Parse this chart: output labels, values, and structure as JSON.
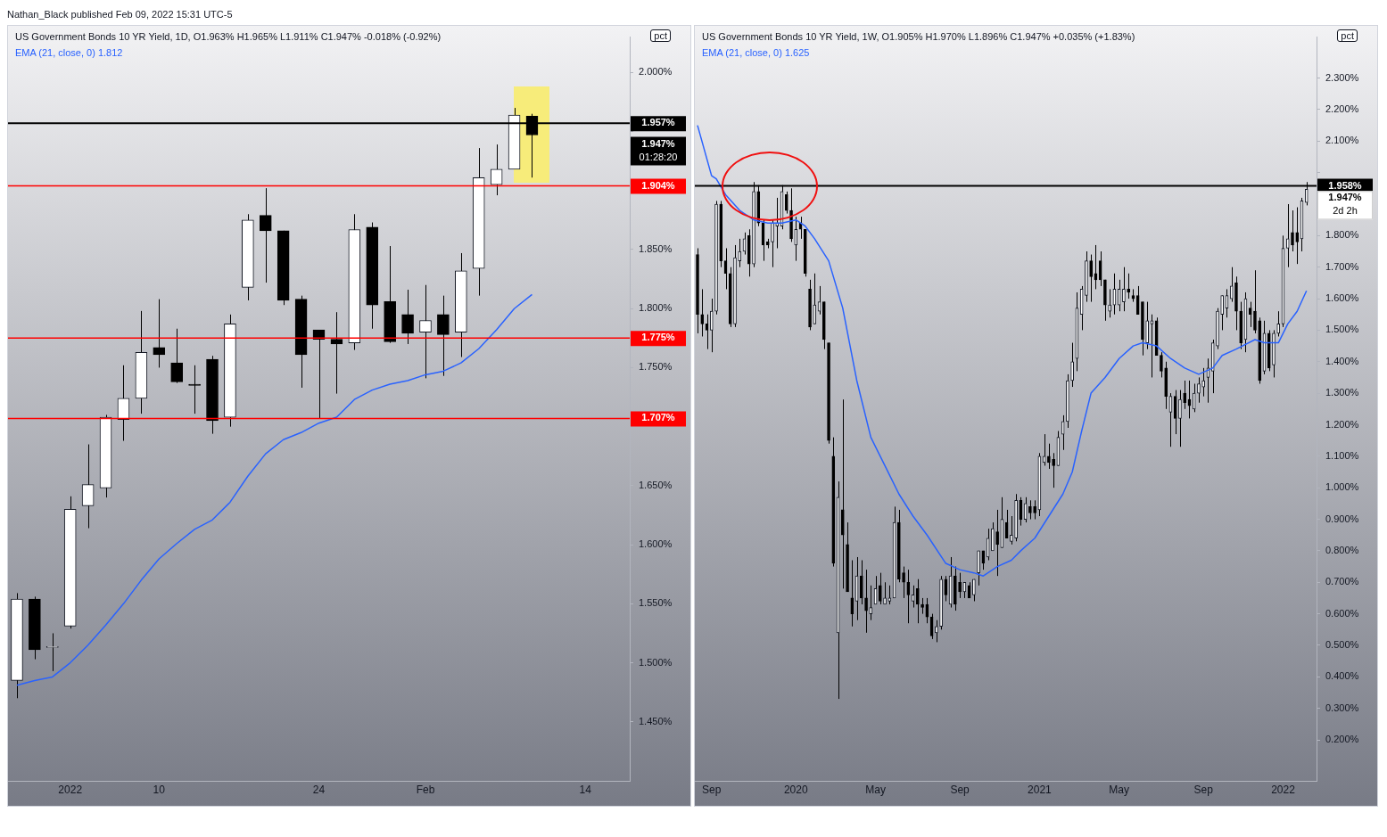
{
  "chart_data": [
    {
      "type": "candlestick",
      "title": "US Government Bonds 10 YR Yield, 1D, O1.963% H1.965% L1.911% C1.947% -0.018% (-0.92%)",
      "subtitle": "Nathan_Black published Feb 09, 2022 15:31 UTC-5",
      "ylabel": "pct",
      "color": "#000000",
      "colors": [
        "#131722",
        "#000000",
        "#131722",
        "#131722",
        "#131722",
        "#131722",
        "#131722",
        "#131722",
        "#000000",
        "#000000",
        "#000000",
        "#000000",
        "#131722",
        "#131722",
        "#000000",
        "#000000",
        "#000000",
        "#000000",
        "#000000",
        "#131722",
        "#000000",
        "#000000",
        "#000000",
        "#131722",
        "#000000",
        "#131722",
        "#131722",
        "#131722",
        "#131722",
        "#000000",
        null,
        null,
        null,
        null,
        null
      ],
      "categories": [
        null,
        null,
        null,
        "2022",
        null,
        null,
        null,
        null,
        "10",
        null,
        null,
        null,
        null,
        null,
        null,
        null,
        null,
        "24",
        null,
        null,
        null,
        null,
        null,
        "Feb",
        null,
        null,
        null,
        null,
        null,
        null,
        null,
        null,
        "14",
        null,
        null
      ],
      "ohlc": [
        [
          1.485,
          1.559,
          1.47,
          1.554
        ],
        [
          1.554,
          1.556,
          1.503,
          1.511
        ],
        [
          1.513,
          1.525,
          1.493,
          1.513
        ],
        [
          1.531,
          1.641,
          1.529,
          1.63
        ],
        [
          1.633,
          1.685,
          1.614,
          1.651
        ],
        [
          1.648,
          1.71,
          1.64,
          1.708
        ],
        [
          1.706,
          1.752,
          1.688,
          1.724
        ],
        [
          1.724,
          1.798,
          1.711,
          1.763
        ],
        [
          1.767,
          1.808,
          1.75,
          1.761
        ],
        [
          1.754,
          1.783,
          1.737,
          1.738
        ],
        [
          1.736,
          1.752,
          1.711,
          1.735
        ],
        [
          1.757,
          1.76,
          1.694,
          1.705
        ],
        [
          1.708,
          1.795,
          1.7,
          1.787
        ],
        [
          1.818,
          1.88,
          1.807,
          1.875
        ],
        [
          1.879,
          1.902,
          1.822,
          1.866
        ],
        [
          1.866,
          1.866,
          1.803,
          1.807
        ],
        [
          1.808,
          1.811,
          1.733,
          1.761
        ],
        [
          1.782,
          1.782,
          1.707,
          1.774
        ],
        [
          1.774,
          1.797,
          1.728,
          1.77
        ],
        [
          1.771,
          1.88,
          1.765,
          1.867
        ],
        [
          1.869,
          1.873,
          1.783,
          1.803
        ],
        [
          1.806,
          1.853,
          1.771,
          1.772
        ],
        [
          1.795,
          1.816,
          1.77,
          1.779
        ],
        [
          1.78,
          1.82,
          1.741,
          1.79
        ],
        [
          1.795,
          1.811,
          1.743,
          1.778
        ],
        [
          1.78,
          1.847,
          1.759,
          1.832
        ],
        [
          1.834,
          1.936,
          1.811,
          1.911
        ],
        [
          1.905,
          1.939,
          1.896,
          1.918
        ],
        [
          1.918,
          1.97,
          1.918,
          1.964
        ],
        [
          1.963,
          1.965,
          1.911,
          1.947
        ],
        null,
        null,
        null,
        null,
        null
      ],
      "series": [
        {
          "name": "EMA (21, close, 0) 1.812",
          "type": "line",
          "color": "#2962ff",
          "values": [
            1.481,
            1.485,
            1.488,
            1.5,
            1.515,
            1.532,
            1.55,
            1.57,
            1.588,
            1.601,
            1.613,
            1.621,
            1.636,
            1.658,
            1.677,
            1.689,
            1.695,
            1.703,
            1.708,
            1.723,
            1.731,
            1.736,
            1.739,
            1.744,
            1.747,
            1.754,
            1.766,
            1.782,
            1.8,
            1.812,
            null,
            null,
            null,
            null,
            null
          ]
        }
      ],
      "ylim": [
        1.4,
        2.03
      ],
      "yticks": [
        {
          "value": 1.45,
          "label": "1.450%"
        },
        {
          "value": 1.5,
          "label": "1.500%"
        },
        {
          "value": 1.55,
          "label": "1.550%"
        },
        {
          "value": 1.6,
          "label": "1.600%"
        },
        {
          "value": 1.65,
          "label": "1.650%"
        },
        {
          "value": 1.7,
          "label": null
        },
        {
          "value": 1.75,
          "label": "1.750%"
        },
        {
          "value": 1.8,
          "label": "1.800%"
        },
        {
          "value": 1.85,
          "label": "1.850%"
        },
        {
          "value": 1.9,
          "label": null
        },
        {
          "value": 1.95,
          "label": null
        },
        {
          "value": 2.0,
          "label": "2.000%"
        }
      ],
      "ref_lines": [
        {
          "axis": "y",
          "value": 1.957,
          "label": "1.957%",
          "color": "#000000"
        },
        {
          "axis": "y",
          "value": 1.904,
          "label": "1.904%",
          "color": "#ff0000"
        },
        {
          "axis": "y",
          "value": 1.775,
          "label": "1.775%",
          "color": "#ff0000"
        },
        {
          "axis": "y",
          "value": 1.707,
          "label": "1.707%",
          "color": "#ff0000"
        }
      ],
      "annotations": [
        "1.947%",
        "01:28:20"
      ],
      "legend": "top left"
    },
    {
      "type": "candlestick",
      "title": "US Government Bonds 10 YR Yield, 1W, O1.905% H1.970% L1.896% C1.947% +0.035% (+1.83%)",
      "ylabel": "pct",
      "color": "#000000",
      "colors": [
        "#000000",
        "#000000",
        "#000000",
        "#131722",
        "#131722",
        "#000000",
        "#000000",
        "#000000",
        "#131722",
        "#131722",
        "#131722",
        "#000000",
        "#131722",
        "#000000",
        "#000000",
        "#000000",
        "#131722",
        "#131722",
        "#131722",
        "#000000",
        "#000000",
        "#131722",
        "#000000",
        "#000000",
        "#000000",
        "#131722",
        "#131722",
        "#000000",
        "#000000",
        "#000000",
        "#131722",
        "#000000",
        "#000000",
        "#000000",
        "#131722",
        "#000000",
        "#000000",
        "#131722",
        "#131722",
        "#000000",
        "#131722",
        "#131722",
        "#131722",
        "#000000",
        "#000000",
        "#000000",
        "#131722",
        "#000000",
        "#000000",
        "#000000",
        "#000000",
        "#131722",
        "#131722",
        "#000000",
        "#131722",
        "#000000",
        "#000000",
        "#131722",
        "#000000",
        "#131722",
        "#131722",
        "#000000",
        "#131722",
        "#131722",
        "#000000",
        "#131722",
        "#000000",
        "#131722",
        "#131722",
        "#000000",
        "#131722",
        "#000000",
        "#000000",
        "#131722",
        "#131722",
        "#000000",
        "#000000",
        "#131722",
        "#131722",
        "#131722",
        "#131722",
        "#131722",
        "#131722",
        "#131722",
        "#000000",
        "#000000",
        "#000000",
        "#000000",
        "#131722",
        "#131722",
        "#131722",
        "#131722",
        "#000000",
        "#000000",
        "#000000",
        "#000000",
        "#131722",
        "#131722",
        "#000000",
        "#000000",
        "#000000",
        "#131722",
        "#000000",
        "#131722",
        "#000000",
        "#000000",
        "#131722",
        "#131722",
        "#131722",
        "#131722",
        "#131722",
        "#131722",
        "#131722",
        "#131722",
        "#131722",
        "#000000",
        "#000000",
        "#131722",
        "#000000",
        "#000000",
        "#000000",
        "#131722",
        "#000000",
        "#131722",
        "#131722",
        "#131722",
        "#131722",
        "#000000",
        "#000000",
        "#131722",
        "#131722"
      ],
      "x": [
        "2019-08-12",
        "2019-08-19",
        "2019-08-26",
        "2019-09-02",
        "2019-09-09",
        "2019-09-16",
        "2019-09-23",
        "2019-09-30",
        "2019-10-07",
        "2019-10-14",
        "2019-10-21",
        "2019-10-28",
        "2019-11-04",
        "2019-11-11",
        "2019-11-18",
        "2019-11-25",
        "2019-12-02",
        "2019-12-09",
        "2019-12-16",
        "2019-12-23",
        "2019-12-30",
        "2020-01-06",
        "2020-01-13",
        "2020-01-20",
        "2020-01-27",
        "2020-02-03",
        "2020-02-10",
        "2020-02-17",
        "2020-02-24",
        "2020-03-02",
        "2020-03-09",
        "2020-03-16",
        "2020-03-23",
        "2020-03-30",
        "2020-04-06",
        "2020-04-13",
        "2020-04-20",
        "2020-04-27",
        "2020-05-04",
        "2020-05-11",
        "2020-05-18",
        "2020-05-25",
        "2020-06-01",
        "2020-06-08",
        "2020-06-15",
        "2020-06-22",
        "2020-06-29",
        "2020-07-06",
        "2020-07-13",
        "2020-07-20",
        "2020-07-27",
        "2020-08-03",
        "2020-08-10",
        "2020-08-17",
        "2020-08-24",
        "2020-08-31",
        "2020-09-07",
        "2020-09-14",
        "2020-09-21",
        "2020-09-28",
        "2020-10-05",
        "2020-10-12",
        "2020-10-19",
        "2020-10-26",
        "2020-11-02",
        "2020-11-09",
        "2020-11-16",
        "2020-11-23",
        "2020-11-30",
        "2020-12-07",
        "2020-12-14",
        "2020-12-21",
        "2020-12-28",
        "2021-01-04",
        "2021-01-11",
        "2021-01-18",
        "2021-01-25",
        "2021-02-01",
        "2021-02-08",
        "2021-02-15",
        "2021-02-22",
        "2021-03-01",
        "2021-03-08",
        "2021-03-15",
        "2021-03-22",
        "2021-03-29",
        "2021-04-05",
        "2021-04-12",
        "2021-04-19",
        "2021-04-26",
        "2021-05-03",
        "2021-05-10",
        "2021-05-17",
        "2021-05-24",
        "2021-05-31",
        "2021-06-07",
        "2021-06-14",
        "2021-06-21",
        "2021-06-28",
        "2021-07-05",
        "2021-07-12",
        "2021-07-19",
        "2021-07-26",
        "2021-08-02",
        "2021-08-09",
        "2021-08-16",
        "2021-08-23",
        "2021-08-30",
        "2021-09-06",
        "2021-09-13",
        "2021-09-20",
        "2021-09-27",
        "2021-10-04",
        "2021-10-11",
        "2021-10-18",
        "2021-10-25",
        "2021-11-01",
        "2021-11-08",
        "2021-11-15",
        "2021-11-22",
        "2021-11-29",
        "2021-12-06",
        "2021-12-13",
        "2021-12-20",
        "2021-12-27",
        "2022-01-03",
        "2022-01-10",
        "2022-01-17",
        "2022-01-24",
        "2022-01-31",
        "2022-02-07"
      ],
      "ohlc": [
        [
          1.74,
          1.76,
          1.49,
          1.55
        ],
        [
          1.55,
          1.63,
          1.48,
          1.52
        ],
        [
          1.52,
          1.55,
          1.44,
          1.5
        ],
        [
          1.5,
          1.6,
          1.43,
          1.56
        ],
        [
          1.56,
          1.91,
          1.55,
          1.9
        ],
        [
          1.9,
          1.91,
          1.7,
          1.72
        ],
        [
          1.72,
          1.76,
          1.63,
          1.68
        ],
        [
          1.68,
          1.7,
          1.51,
          1.52
        ],
        [
          1.52,
          1.77,
          1.51,
          1.73
        ],
        [
          1.72,
          1.79,
          1.7,
          1.75
        ],
        [
          1.75,
          1.81,
          1.74,
          1.79
        ],
        [
          1.8,
          1.82,
          1.67,
          1.71
        ],
        [
          1.71,
          1.97,
          1.7,
          1.94
        ],
        [
          1.94,
          1.96,
          1.83,
          1.84
        ],
        [
          1.84,
          1.85,
          1.72,
          1.77
        ],
        [
          1.78,
          1.79,
          1.76,
          1.77
        ],
        [
          1.78,
          1.85,
          1.7,
          1.84
        ],
        [
          1.83,
          1.92,
          1.76,
          1.84
        ],
        [
          1.83,
          1.96,
          1.82,
          1.94
        ],
        [
          1.93,
          1.94,
          1.87,
          1.88
        ],
        [
          1.88,
          1.95,
          1.78,
          1.79
        ],
        [
          1.77,
          1.86,
          1.72,
          1.82
        ],
        [
          1.84,
          1.86,
          1.79,
          1.82
        ],
        [
          1.82,
          1.82,
          1.67,
          1.68
        ],
        [
          1.63,
          1.66,
          1.5,
          1.51
        ],
        [
          1.52,
          1.68,
          1.52,
          1.58
        ],
        [
          1.56,
          1.64,
          1.55,
          1.59
        ],
        [
          1.59,
          1.59,
          1.44,
          1.47
        ],
        [
          1.46,
          1.46,
          1.14,
          1.15
        ],
        [
          1.1,
          1.16,
          0.75,
          0.76
        ],
        [
          0.54,
          1.02,
          0.33,
          0.97
        ],
        [
          0.93,
          1.28,
          0.68,
          0.85
        ],
        [
          0.82,
          0.89,
          0.67,
          0.67
        ],
        [
          0.65,
          0.77,
          0.56,
          0.6
        ],
        [
          0.64,
          0.78,
          0.58,
          0.72
        ],
        [
          0.72,
          0.77,
          0.63,
          0.65
        ],
        [
          0.65,
          0.74,
          0.54,
          0.61
        ],
        [
          0.6,
          0.69,
          0.58,
          0.62
        ],
        [
          0.63,
          0.72,
          0.63,
          0.68
        ],
        [
          0.69,
          0.73,
          0.63,
          0.64
        ],
        [
          0.63,
          0.7,
          0.63,
          0.65
        ],
        [
          0.64,
          0.69,
          0.63,
          0.65
        ],
        [
          0.65,
          0.94,
          0.65,
          0.89
        ],
        [
          0.89,
          0.93,
          0.7,
          0.71
        ],
        [
          0.73,
          0.75,
          0.65,
          0.7
        ],
        [
          0.7,
          0.74,
          0.57,
          0.66
        ],
        [
          0.64,
          0.69,
          0.62,
          0.66
        ],
        [
          0.68,
          0.71,
          0.57,
          0.63
        ],
        [
          0.63,
          0.65,
          0.6,
          0.62
        ],
        [
          0.63,
          0.65,
          0.57,
          0.59
        ],
        [
          0.59,
          0.6,
          0.52,
          0.53
        ],
        [
          0.54,
          0.58,
          0.51,
          0.56
        ],
        [
          0.56,
          0.72,
          0.55,
          0.71
        ],
        [
          0.71,
          0.72,
          0.64,
          0.66
        ],
        [
          0.63,
          0.78,
          0.62,
          0.72
        ],
        [
          0.72,
          0.75,
          0.61,
          0.63
        ],
        [
          0.7,
          0.73,
          0.65,
          0.67
        ],
        [
          0.67,
          0.7,
          0.65,
          0.7
        ],
        [
          0.69,
          0.7,
          0.65,
          0.65
        ],
        [
          0.66,
          0.71,
          0.64,
          0.71
        ],
        [
          0.73,
          0.8,
          0.69,
          0.8
        ],
        [
          0.8,
          0.8,
          0.74,
          0.76
        ],
        [
          0.78,
          0.87,
          0.77,
          0.84
        ],
        [
          0.8,
          0.89,
          0.8,
          0.87
        ],
        [
          0.86,
          0.93,
          0.72,
          0.82
        ],
        [
          0.81,
          0.97,
          0.81,
          0.9
        ],
        [
          0.89,
          0.93,
          0.84,
          0.84
        ],
        [
          0.83,
          0.91,
          0.82,
          0.85
        ],
        [
          0.84,
          0.98,
          0.83,
          0.96
        ],
        [
          0.96,
          0.97,
          0.88,
          0.9
        ],
        [
          0.9,
          0.97,
          0.89,
          0.95
        ],
        [
          0.94,
          0.96,
          0.9,
          0.92
        ],
        [
          0.94,
          0.96,
          0.9,
          0.92
        ],
        [
          0.93,
          1.11,
          0.91,
          1.1
        ],
        [
          1.08,
          1.17,
          1.07,
          1.1
        ],
        [
          1.1,
          1.14,
          1.06,
          1.08
        ],
        [
          1.09,
          1.11,
          1.0,
          1.07
        ],
        [
          1.07,
          1.18,
          1.07,
          1.16
        ],
        [
          1.17,
          1.23,
          1.12,
          1.21
        ],
        [
          1.21,
          1.36,
          1.19,
          1.34
        ],
        [
          1.34,
          1.46,
          1.32,
          1.4
        ],
        [
          1.41,
          1.62,
          1.37,
          1.57
        ],
        [
          1.55,
          1.64,
          1.5,
          1.63
        ],
        [
          1.61,
          1.75,
          1.59,
          1.72
        ],
        [
          1.72,
          1.74,
          1.59,
          1.67
        ],
        [
          1.68,
          1.77,
          1.63,
          1.66
        ],
        [
          1.72,
          1.75,
          1.64,
          1.66
        ],
        [
          1.66,
          1.66,
          1.53,
          1.58
        ],
        [
          1.56,
          1.63,
          1.54,
          1.58
        ],
        [
          1.58,
          1.68,
          1.55,
          1.63
        ],
        [
          1.58,
          1.66,
          1.56,
          1.63
        ],
        [
          1.59,
          1.7,
          1.56,
          1.63
        ],
        [
          1.63,
          1.68,
          1.6,
          1.62
        ],
        [
          1.61,
          1.63,
          1.59,
          1.6
        ],
        [
          1.61,
          1.64,
          1.55,
          1.55
        ],
        [
          1.59,
          1.59,
          1.42,
          1.47
        ],
        [
          1.46,
          1.59,
          1.44,
          1.53
        ],
        [
          1.52,
          1.55,
          1.35,
          1.53
        ],
        [
          1.53,
          1.54,
          1.42,
          1.42
        ],
        [
          1.42,
          1.43,
          1.35,
          1.37
        ],
        [
          1.38,
          1.4,
          1.25,
          1.29
        ],
        [
          1.24,
          1.3,
          1.13,
          1.29
        ],
        [
          1.29,
          1.31,
          1.17,
          1.22
        ],
        [
          1.22,
          1.31,
          1.13,
          1.28
        ],
        [
          1.3,
          1.34,
          1.25,
          1.27
        ],
        [
          1.28,
          1.34,
          1.22,
          1.26
        ],
        [
          1.25,
          1.33,
          1.24,
          1.3
        ],
        [
          1.3,
          1.35,
          1.27,
          1.33
        ],
        [
          1.32,
          1.38,
          1.29,
          1.34
        ],
        [
          1.35,
          1.41,
          1.27,
          1.38
        ],
        [
          1.37,
          1.47,
          1.3,
          1.46
        ],
        [
          1.45,
          1.57,
          1.44,
          1.56
        ],
        [
          1.55,
          1.61,
          1.5,
          1.61
        ],
        [
          1.57,
          1.63,
          1.54,
          1.61
        ],
        [
          1.6,
          1.7,
          1.59,
          1.64
        ],
        [
          1.65,
          1.67,
          1.5,
          1.56
        ],
        [
          1.56,
          1.59,
          1.44,
          1.46
        ],
        [
          1.47,
          1.62,
          1.43,
          1.6
        ],
        [
          1.57,
          1.59,
          1.51,
          1.55
        ],
        [
          1.56,
          1.69,
          1.49,
          1.5
        ],
        [
          1.53,
          1.54,
          1.33,
          1.34
        ],
        [
          1.37,
          1.53,
          1.36,
          1.49
        ],
        [
          1.49,
          1.5,
          1.37,
          1.38
        ],
        [
          1.39,
          1.5,
          1.35,
          1.49
        ],
        [
          1.49,
          1.56,
          1.48,
          1.52
        ],
        [
          1.52,
          1.8,
          1.51,
          1.76
        ],
        [
          1.76,
          1.9,
          1.7,
          1.79
        ],
        [
          1.81,
          1.88,
          1.75,
          1.77
        ],
        [
          1.81,
          1.89,
          1.71,
          1.78
        ],
        [
          1.79,
          1.92,
          1.75,
          1.91
        ],
        [
          1.905,
          1.97,
          1.896,
          1.947
        ]
      ],
      "series": [
        {
          "name": "EMA (21, close, 0) 1.625",
          "type": "line",
          "color": "#2962ff",
          "x": [
            "2019-08-12",
            "2019-09-02",
            "2019-09-09",
            "2019-09-23",
            "2019-10-14",
            "2019-11-04",
            "2019-11-25",
            "2019-12-16",
            "2020-01-06",
            "2020-01-20",
            "2020-02-03",
            "2020-02-24",
            "2020-03-16",
            "2020-04-06",
            "2020-04-27",
            "2020-05-18",
            "2020-06-08",
            "2020-06-29",
            "2020-07-20",
            "2020-08-17",
            "2020-09-07",
            "2020-09-28",
            "2020-10-12",
            "2020-11-02",
            "2020-11-23",
            "2020-12-07",
            "2020-12-28",
            "2021-01-18",
            "2021-02-08",
            "2021-02-22",
            "2021-03-08",
            "2021-03-22",
            "2021-04-12",
            "2021-05-03",
            "2021-05-24",
            "2021-06-07",
            "2021-06-28",
            "2021-07-19",
            "2021-08-09",
            "2021-08-30",
            "2021-09-20",
            "2021-10-04",
            "2021-10-25",
            "2021-11-22",
            "2021-12-06",
            "2021-12-27",
            "2022-01-10",
            "2022-01-24",
            "2022-02-07"
          ],
          "values": [
            2.15,
            1.99,
            1.98,
            1.93,
            1.88,
            1.85,
            1.84,
            1.84,
            1.85,
            1.83,
            1.79,
            1.72,
            1.57,
            1.34,
            1.16,
            1.07,
            0.98,
            0.91,
            0.85,
            0.76,
            0.74,
            0.73,
            0.72,
            0.75,
            0.77,
            0.8,
            0.84,
            0.91,
            0.98,
            1.05,
            1.18,
            1.3,
            1.35,
            1.41,
            1.45,
            1.46,
            1.45,
            1.41,
            1.38,
            1.36,
            1.38,
            1.42,
            1.44,
            1.47,
            1.46,
            1.46,
            1.52,
            1.56,
            1.625
          ]
        }
      ],
      "xlim": [
        "2019-08-08",
        "2022-02-22"
      ],
      "xticks": [
        {
          "value": "2019-09-02",
          "label": "Sep"
        },
        {
          "value": "2020-01-06",
          "label": "2020"
        },
        {
          "value": "2020-05-04",
          "label": "May"
        },
        {
          "value": "2020-09-07",
          "label": "Sep"
        },
        {
          "value": "2021-01-04",
          "label": "2021"
        },
        {
          "value": "2021-05-03",
          "label": "May"
        },
        {
          "value": "2021-09-06",
          "label": "Sep"
        },
        {
          "value": "2022-01-03",
          "label": "2022"
        }
      ],
      "ylim": [
        0.07,
        2.43
      ],
      "yticks": [
        {
          "value": 0.2,
          "label": "0.200%"
        },
        {
          "value": 0.3,
          "label": "0.300%"
        },
        {
          "value": 0.4,
          "label": "0.400%"
        },
        {
          "value": 0.5,
          "label": "0.500%"
        },
        {
          "value": 0.6,
          "label": "0.600%"
        },
        {
          "value": 0.7,
          "label": "0.700%"
        },
        {
          "value": 0.8,
          "label": "0.800%"
        },
        {
          "value": 0.9,
          "label": "0.900%"
        },
        {
          "value": 1.0,
          "label": "1.000%"
        },
        {
          "value": 1.1,
          "label": "1.100%"
        },
        {
          "value": 1.2,
          "label": "1.200%"
        },
        {
          "value": 1.3,
          "label": "1.300%"
        },
        {
          "value": 1.4,
          "label": "1.400%"
        },
        {
          "value": 1.5,
          "label": "1.500%"
        },
        {
          "value": 1.6,
          "label": "1.600%"
        },
        {
          "value": 1.7,
          "label": "1.700%"
        },
        {
          "value": 1.8,
          "label": "1.800%"
        },
        {
          "value": 1.9,
          "label": null
        },
        {
          "value": 2.0,
          "label": null
        },
        {
          "value": 2.1,
          "label": "2.100%"
        },
        {
          "value": 2.2,
          "label": "2.200%"
        },
        {
          "value": 2.3,
          "label": "2.300%"
        }
      ],
      "ref_lines": [
        {
          "axis": "y",
          "value": 1.958,
          "label": "1.958%",
          "color": "#000000"
        }
      ],
      "annotations": [
        "1.947%",
        "2d 2h"
      ],
      "legend": "top left"
    }
  ]
}
